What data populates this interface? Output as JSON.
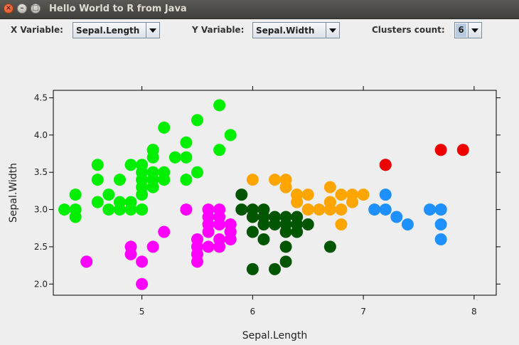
{
  "window": {
    "title": "Hello World to R from Java"
  },
  "controls": {
    "x_label": "X Variable:",
    "x_value": "Sepal.Length",
    "y_label": "Y Variable:",
    "y_value": "Sepal.Width",
    "clusters_label": "Clusters count:",
    "clusters_value": "6"
  },
  "colors": {
    "c1": "#00ee00",
    "c2": "#ff00ff",
    "c3": "#005500",
    "c4": "#ffa500",
    "c5": "#1e90ff",
    "c6": "#ee0000"
  },
  "chart_data": {
    "type": "scatter",
    "xlabel": "Sepal.Length",
    "ylabel": "Sepal.Width",
    "xlim": [
      4.2,
      8.2
    ],
    "ylim": [
      1.85,
      4.6
    ],
    "xticks": [
      5,
      6,
      7,
      8
    ],
    "yticks": [
      2.0,
      2.5,
      3.0,
      3.5,
      4.0,
      4.5
    ],
    "ytick_labels": [
      "2.0",
      "2.5",
      "3.0",
      "3.5",
      "4.0",
      "4.5"
    ],
    "series": [
      {
        "color": "#00ee00",
        "x": [
          4.3,
          4.4,
          4.4,
          4.4,
          4.5,
          4.6,
          4.6,
          4.6,
          4.7,
          4.7,
          4.8,
          4.8,
          4.8,
          4.9,
          4.9,
          4.9,
          5.0,
          5.0,
          5.0,
          5.0,
          5.0,
          5.0,
          5.0,
          5.1,
          5.1,
          5.1,
          5.1,
          5.1,
          5.1,
          5.2,
          5.2,
          5.2,
          5.3,
          5.4,
          5.4,
          5.4,
          5.5,
          5.5,
          5.7,
          5.7,
          5.8
        ],
        "y": [
          3.0,
          3.0,
          2.9,
          3.2,
          2.3,
          3.1,
          3.4,
          3.6,
          3.2,
          3.0,
          3.0,
          3.1,
          3.4,
          3.0,
          3.1,
          3.6,
          3.0,
          3.2,
          3.3,
          3.4,
          3.5,
          3.6,
          3.0,
          3.3,
          3.4,
          3.5,
          3.7,
          3.8,
          3.8,
          3.4,
          3.5,
          4.1,
          3.7,
          3.7,
          3.9,
          3.4,
          3.5,
          4.2,
          3.8,
          4.4,
          4.0
        ]
      },
      {
        "color": "#ff00ff",
        "x": [
          4.5,
          4.9,
          4.9,
          5.0,
          5.0,
          5.1,
          5.2,
          5.4,
          5.5,
          5.5,
          5.5,
          5.5,
          5.5,
          5.6,
          5.6,
          5.6,
          5.6,
          5.6,
          5.7,
          5.7,
          5.7,
          5.7,
          5.7,
          5.8,
          5.8,
          5.8,
          5.8
        ],
        "y": [
          2.3,
          2.4,
          2.5,
          2.0,
          2.3,
          2.5,
          2.7,
          3.0,
          2.3,
          2.4,
          2.5,
          2.6,
          2.4,
          2.5,
          2.7,
          2.8,
          2.9,
          3.0,
          2.5,
          2.6,
          2.8,
          2.9,
          3.0,
          2.6,
          2.7,
          2.7,
          2.8
        ]
      },
      {
        "color": "#005500",
        "x": [
          5.9,
          5.9,
          6.0,
          6.0,
          6.0,
          6.0,
          6.1,
          6.1,
          6.1,
          6.1,
          6.2,
          6.2,
          6.2,
          6.3,
          6.3,
          6.3,
          6.3,
          6.3,
          6.4,
          6.4,
          6.4,
          6.5,
          6.7
        ],
        "y": [
          3.2,
          3.0,
          3.0,
          2.9,
          2.7,
          2.2,
          3.0,
          2.9,
          2.8,
          2.6,
          2.9,
          2.8,
          2.2,
          2.9,
          2.8,
          2.7,
          2.5,
          2.3,
          2.9,
          2.8,
          2.7,
          2.8,
          2.5
        ]
      },
      {
        "color": "#ffa500",
        "x": [
          6.0,
          6.2,
          6.3,
          6.3,
          6.4,
          6.4,
          6.5,
          6.5,
          6.5,
          6.6,
          6.7,
          6.7,
          6.7,
          6.8,
          6.8,
          6.9,
          6.9,
          7.0,
          6.3,
          6.4,
          6.4,
          6.7,
          6.8
        ],
        "y": [
          3.4,
          3.4,
          3.4,
          3.3,
          3.2,
          3.1,
          3.2,
          3.0,
          3.0,
          3.0,
          3.3,
          3.1,
          3.0,
          3.2,
          3.0,
          3.1,
          3.2,
          3.2,
          3.3,
          3.2,
          3.1,
          3.1,
          2.8
        ]
      },
      {
        "color": "#1e90ff",
        "x": [
          7.1,
          7.2,
          7.2,
          7.2,
          7.3,
          7.4,
          7.6,
          7.7,
          7.7,
          7.7,
          7.7
        ],
        "y": [
          3.0,
          3.6,
          3.2,
          3.0,
          2.9,
          2.8,
          3.0,
          3.0,
          2.8,
          2.6,
          3.0
        ]
      },
      {
        "color": "#ee0000",
        "x": [
          7.2,
          7.7,
          7.9
        ],
        "y": [
          3.6,
          3.8,
          3.8
        ]
      }
    ]
  }
}
